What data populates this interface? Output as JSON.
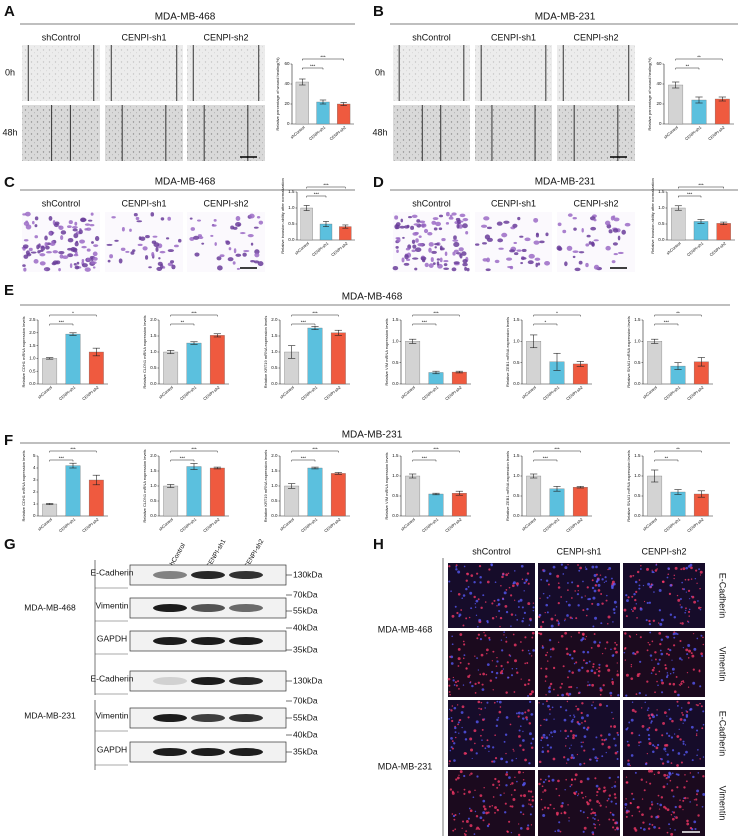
{
  "panels": {
    "A": {
      "letter": "A",
      "title": "MDA-MB-468",
      "columns": [
        "shControl",
        "CENPI-sh1",
        "CENPI-sh2"
      ],
      "rows": [
        "0h",
        "48h"
      ]
    },
    "B": {
      "letter": "B",
      "title": "MDA-MB-231",
      "columns": [
        "shControl",
        "CENPI-sh1",
        "CENPI-sh2"
      ],
      "rows": [
        "0h",
        "48h"
      ]
    },
    "C": {
      "letter": "C",
      "title": "MDA-MB-468",
      "columns": [
        "shControl",
        "CENPI-sh1",
        "CENPI-sh2"
      ]
    },
    "D": {
      "letter": "D",
      "title": "MDA-MB-231",
      "columns": [
        "shControl",
        "CENPI-sh1",
        "CENPI-sh2"
      ]
    },
    "E": {
      "letter": "E",
      "title": "MDA-MB-468"
    },
    "F": {
      "letter": "F",
      "title": "MDA-MB-231"
    },
    "G": {
      "letter": "G",
      "columns": [
        "shControl",
        "CENPI-sh1",
        "CENPI-sh2"
      ],
      "cell_lines": [
        "MDA-MB-468",
        "MDA-MB-231"
      ],
      "proteins": [
        "E-Cadherin",
        "Vimentin",
        "GAPDH",
        "E-Cadherin",
        "Vimentin",
        "GAPDH"
      ],
      "markers": [
        "130kDa",
        "70kDa",
        "55kDa",
        "40kDa",
        "35kDa",
        "130kDa",
        "70kDa",
        "55kDa",
        "40kDa",
        "35kDa"
      ]
    },
    "H": {
      "letter": "H",
      "columns": [
        "shControl",
        "CENPI-sh1",
        "CENPI-sh2"
      ],
      "cell_lines": [
        "MDA-MB-468",
        "MDA-MB-231"
      ],
      "stains": [
        "E-Cadherin",
        "Vimentin",
        "E-Cadherin",
        "Vimentin"
      ]
    }
  },
  "chart_data": [
    {
      "type": "bar",
      "y_label": "Relative percentage of wound healing(%)",
      "categories": [
        "shControl",
        "CENPI-sh1",
        "CENPI-sh2"
      ],
      "values": [
        42,
        22,
        20
      ],
      "errors": [
        3,
        2,
        1.5
      ],
      "colors": [
        "#d3d3d3",
        "#5bc0de",
        "#ef5a3f"
      ],
      "ylim": [
        0,
        60
      ],
      "yticks": [
        0,
        20,
        40,
        60
      ],
      "significance": [
        "***",
        "***"
      ]
    },
    {
      "type": "bar",
      "y_label": "Relative percentage of wound healing(%)",
      "categories": [
        "shControl",
        "CENPI-sh1",
        "CENPI-sh2"
      ],
      "values": [
        39,
        24,
        25
      ],
      "errors": [
        3,
        3,
        2
      ],
      "colors": [
        "#d3d3d3",
        "#5bc0de",
        "#ef5a3f"
      ],
      "ylim": [
        0,
        60
      ],
      "yticks": [
        0,
        20,
        40,
        60
      ],
      "significance": [
        "**",
        "**"
      ]
    },
    {
      "type": "bar",
      "y_label": "Relative invasion ability after normalization",
      "categories": [
        "shControl",
        "CENPI-sh1",
        "CENPI-sh2"
      ],
      "values": [
        1.0,
        0.5,
        0.42
      ],
      "errors": [
        0.08,
        0.08,
        0.05
      ],
      "colors": [
        "#d3d3d3",
        "#5bc0de",
        "#ef5a3f"
      ],
      "ylim": [
        0,
        1.5
      ],
      "yticks": [
        {
          "value": 0,
          "label": "0.0"
        },
        0.5,
        {
          "value": 1,
          "label": "1.0"
        },
        1.5
      ],
      "significance": [
        "***",
        "***"
      ]
    },
    {
      "type": "bar",
      "y_label": "Relative invasion ability after normalization",
      "categories": [
        "shControl",
        "CENPI-sh1",
        "CENPI-sh2"
      ],
      "values": [
        1.0,
        0.58,
        0.52
      ],
      "errors": [
        0.07,
        0.06,
        0.04
      ],
      "colors": [
        "#d3d3d3",
        "#5bc0de",
        "#ef5a3f"
      ],
      "ylim": [
        0,
        1.5
      ],
      "yticks": [
        {
          "value": 0,
          "label": "0.0"
        },
        0.5,
        {
          "value": 1,
          "label": "1.0"
        },
        1.5
      ],
      "significance": [
        "***",
        "***"
      ]
    },
    {
      "type": "bar",
      "y_label": "Relative CDH1 mRNA expression levels",
      "categories": [
        "shControl",
        "CENPI-sh1",
        "CENPI-sh2"
      ],
      "values": [
        1.0,
        1.95,
        1.25
      ],
      "errors": [
        0.03,
        0.05,
        0.15
      ],
      "colors": [
        "#d3d3d3",
        "#5bc0de",
        "#ef5a3f"
      ],
      "ylim": [
        0,
        2.5
      ],
      "yticks": [
        {
          "value": 0,
          "label": "0.0"
        },
        0.5,
        {
          "value": 1,
          "label": "1.0"
        },
        1.5,
        {
          "value": 2,
          "label": "2.0"
        },
        2.5
      ],
      "significance": [
        "***",
        "*"
      ]
    },
    {
      "type": "bar",
      "y_label": "Relative CLDN1 mRNA expression levels",
      "categories": [
        "shControl",
        "CENPI-sh1",
        "CENPI-sh2"
      ],
      "values": [
        1.0,
        1.28,
        1.52
      ],
      "errors": [
        0.05,
        0.04,
        0.05
      ],
      "colors": [
        "#d3d3d3",
        "#5bc0de",
        "#ef5a3f"
      ],
      "ylim": [
        0,
        2
      ],
      "yticks": [
        {
          "value": 0,
          "label": "0.0"
        },
        0.5,
        {
          "value": 1,
          "label": "1.0"
        },
        1.5,
        {
          "value": 2,
          "label": "2.0"
        }
      ],
      "significance": [
        "**",
        "***"
      ]
    },
    {
      "type": "bar",
      "y_label": "Relative KRT19 mRNA expression levels",
      "categories": [
        "shControl",
        "CENPI-sh1",
        "CENPI-sh2"
      ],
      "values": [
        1.0,
        1.75,
        1.6
      ],
      "errors": [
        0.2,
        0.05,
        0.08
      ],
      "colors": [
        "#d3d3d3",
        "#5bc0de",
        "#ef5a3f"
      ],
      "ylim": [
        0,
        2
      ],
      "yticks": [
        {
          "value": 0,
          "label": "0.0"
        },
        0.5,
        {
          "value": 1,
          "label": "1.0"
        },
        1.5,
        {
          "value": 2,
          "label": "2.0"
        }
      ],
      "significance": [
        "***",
        "***"
      ]
    },
    {
      "type": "bar",
      "y_label": "Relative VIM mRNA expression levels",
      "categories": [
        "shControl",
        "CENPI-sh1",
        "CENPI-sh2"
      ],
      "values": [
        1.0,
        0.27,
        0.28
      ],
      "errors": [
        0.05,
        0.03,
        0.02
      ],
      "colors": [
        "#d3d3d3",
        "#5bc0de",
        "#ef5a3f"
      ],
      "ylim": [
        0,
        1.5
      ],
      "yticks": [
        {
          "value": 0,
          "label": "0.0"
        },
        0.5,
        {
          "value": 1,
          "label": "1.0"
        },
        1.5
      ],
      "significance": [
        "***",
        "***"
      ]
    },
    {
      "type": "bar",
      "y_label": "Relative ZEB1 mRNA expression levels",
      "categories": [
        "shControl",
        "CENPI-sh1",
        "CENPI-sh2"
      ],
      "values": [
        1.0,
        0.52,
        0.47
      ],
      "errors": [
        0.15,
        0.2,
        0.06
      ],
      "colors": [
        "#d3d3d3",
        "#5bc0de",
        "#ef5a3f"
      ],
      "ylim": [
        0,
        1.5
      ],
      "yticks": [
        {
          "value": 0,
          "label": "0.0"
        },
        0.5,
        {
          "value": 1,
          "label": "1.0"
        },
        1.5
      ],
      "significance": [
        "*",
        "*"
      ]
    },
    {
      "type": "bar",
      "y_label": "Relative SNAI1 mRNA expression levels",
      "categories": [
        "shControl",
        "CENPI-sh1",
        "CENPI-sh2"
      ],
      "values": [
        1.0,
        0.42,
        0.52
      ],
      "errors": [
        0.05,
        0.08,
        0.1
      ],
      "colors": [
        "#d3d3d3",
        "#5bc0de",
        "#ef5a3f"
      ],
      "ylim": [
        0,
        1.5
      ],
      "yticks": [
        {
          "value": 0,
          "label": "0.0"
        },
        0.5,
        {
          "value": 1,
          "label": "1.0"
        },
        1.5
      ],
      "significance": [
        "***",
        "**"
      ]
    },
    {
      "type": "bar",
      "y_label": "Relative CDH1 mRNA expression levels",
      "categories": [
        "shControl",
        "CENPI-sh1",
        "CENPI-sh2"
      ],
      "values": [
        1.0,
        4.2,
        3.0
      ],
      "errors": [
        0.05,
        0.2,
        0.4
      ],
      "colors": [
        "#d3d3d3",
        "#5bc0de",
        "#ef5a3f"
      ],
      "ylim": [
        0,
        5
      ],
      "yticks": [
        0,
        1,
        2,
        3,
        4,
        5
      ],
      "significance": [
        "***",
        "***"
      ]
    },
    {
      "type": "bar",
      "y_label": "Relative CLDN1 mRNA expression levels",
      "categories": [
        "shControl",
        "CENPI-sh1",
        "CENPI-sh2"
      ],
      "values": [
        1.0,
        1.65,
        1.6
      ],
      "errors": [
        0.05,
        0.1,
        0.03
      ],
      "colors": [
        "#d3d3d3",
        "#5bc0de",
        "#ef5a3f"
      ],
      "ylim": [
        0,
        2
      ],
      "yticks": [
        {
          "value": 0,
          "label": "0.0"
        },
        0.5,
        {
          "value": 1,
          "label": "1.0"
        },
        1.5,
        {
          "value": 2,
          "label": "2.0"
        }
      ],
      "significance": [
        "***",
        "***"
      ]
    },
    {
      "type": "bar",
      "y_label": "Relative KRT19 mRNA expression levels",
      "categories": [
        "shControl",
        "CENPI-sh1",
        "CENPI-sh2"
      ],
      "values": [
        1.0,
        1.6,
        1.42
      ],
      "errors": [
        0.08,
        0.03,
        0.03
      ],
      "colors": [
        "#d3d3d3",
        "#5bc0de",
        "#ef5a3f"
      ],
      "ylim": [
        0,
        2
      ],
      "yticks": [
        {
          "value": 0,
          "label": "0.0"
        },
        0.5,
        {
          "value": 1,
          "label": "1.0"
        },
        1.5,
        {
          "value": 2,
          "label": "2.0"
        }
      ],
      "significance": [
        "***",
        "***"
      ]
    },
    {
      "type": "bar",
      "y_label": "Relative VIM mRNA expression levels",
      "categories": [
        "shControl",
        "CENPI-sh1",
        "CENPI-sh2"
      ],
      "values": [
        1.0,
        0.55,
        0.57
      ],
      "errors": [
        0.05,
        0.02,
        0.05
      ],
      "colors": [
        "#d3d3d3",
        "#5bc0de",
        "#ef5a3f"
      ],
      "ylim": [
        0,
        1.5
      ],
      "yticks": [
        {
          "value": 0,
          "label": "0.0"
        },
        0.5,
        {
          "value": 1,
          "label": "1.0"
        },
        1.5
      ],
      "significance": [
        "***",
        "***"
      ]
    },
    {
      "type": "bar",
      "y_label": "Relative ZEB1 mRNA expression levels",
      "categories": [
        "shControl",
        "CENPI-sh1",
        "CENPI-sh2"
      ],
      "values": [
        1.0,
        0.68,
        0.72
      ],
      "errors": [
        0.05,
        0.06,
        0.02
      ],
      "colors": [
        "#d3d3d3",
        "#5bc0de",
        "#ef5a3f"
      ],
      "ylim": [
        0,
        1.5
      ],
      "yticks": [
        {
          "value": 0,
          "label": "0.0"
        },
        0.5,
        {
          "value": 1,
          "label": "1.0"
        },
        1.5
      ],
      "significance": [
        "***",
        "***"
      ]
    },
    {
      "type": "bar",
      "y_label": "Relative SNAI1 mRNA expression levels",
      "categories": [
        "shControl",
        "CENPI-sh1",
        "CENPI-sh2"
      ],
      "values": [
        1.0,
        0.6,
        0.55
      ],
      "errors": [
        0.15,
        0.06,
        0.08
      ],
      "colors": [
        "#d3d3d3",
        "#5bc0de",
        "#ef5a3f"
      ],
      "ylim": [
        0,
        1.5
      ],
      "yticks": [
        {
          "value": 0,
          "label": "0.0"
        },
        0.5,
        {
          "value": 1,
          "label": "1.0"
        },
        1.5
      ],
      "significance": [
        "**",
        "**"
      ]
    }
  ]
}
